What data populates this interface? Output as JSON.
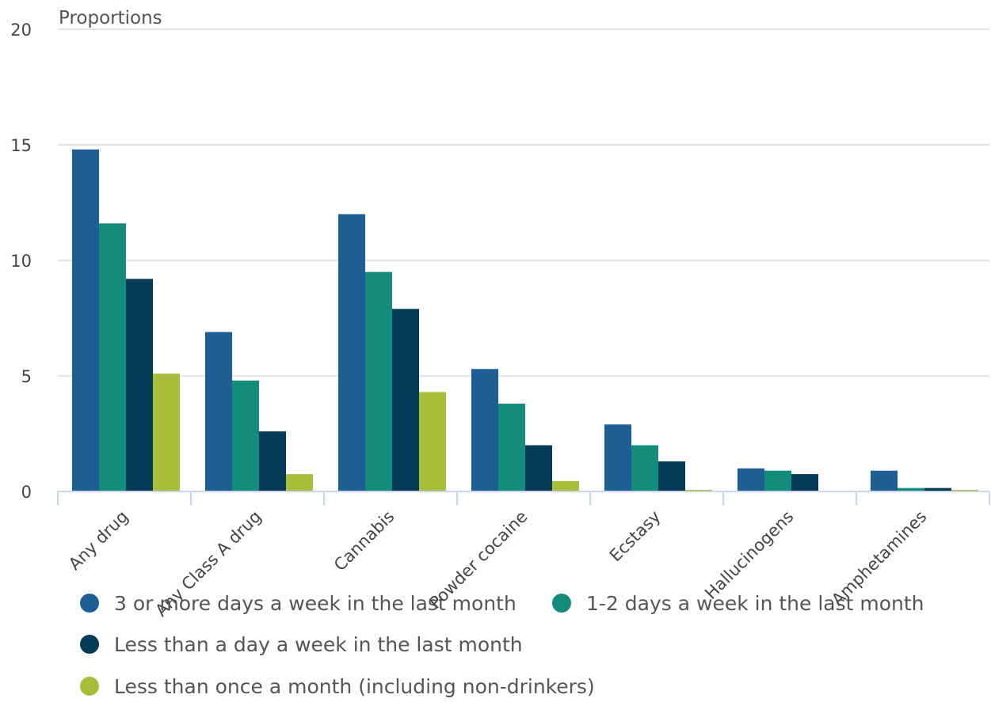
{
  "chart_data": {
    "type": "bar",
    "ylabel": "Proportions",
    "ylim": [
      0,
      20
    ],
    "yticks": [
      0,
      5,
      10,
      15,
      20
    ],
    "grid": true,
    "legend_position": "bottom",
    "categories": [
      "Any drug",
      "Any Class A drug",
      "Cannabis",
      "Powder cocaine",
      "Ecstasy",
      "Hallucinogens",
      "Amphetamines"
    ],
    "series": [
      {
        "name": "3 or more days a week in the last month",
        "color": "#1f5e94",
        "values": [
          14.8,
          6.9,
          12.0,
          5.3,
          2.9,
          1.0,
          0.9
        ]
      },
      {
        "name": "1-2 days a week in the last month",
        "color": "#138d7a",
        "values": [
          11.6,
          4.8,
          9.5,
          3.8,
          2.0,
          0.9,
          0.15
        ]
      },
      {
        "name": "Less than a day a week in the last month",
        "color": "#033a55",
        "values": [
          9.2,
          2.6,
          7.9,
          2.0,
          1.3,
          0.75,
          0.15
        ]
      },
      {
        "name": "Less than once a month (including non-drinkers)",
        "color": "#a8bd3a",
        "values": [
          5.1,
          0.75,
          4.3,
          0.45,
          0.07,
          0.0,
          0.07
        ]
      }
    ]
  }
}
